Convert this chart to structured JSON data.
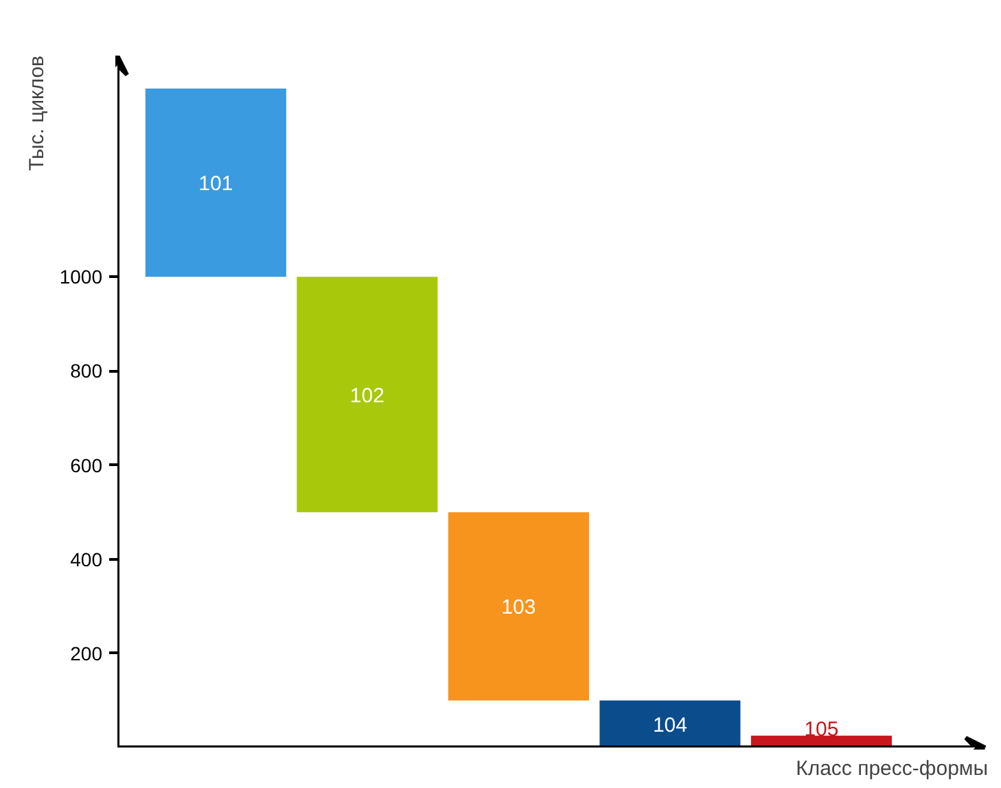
{
  "chart_data": {
    "type": "bar",
    "categories": [
      "101",
      "102",
      "103",
      "104",
      "105"
    ],
    "base": [
      1000,
      500,
      100,
      0,
      0
    ],
    "values": [
      400,
      500,
      400,
      100,
      25
    ],
    "colors": [
      "#3a9be0",
      "#a8c80c",
      "#f7941d",
      "#0b4c8c",
      "#c8161e"
    ],
    "ylim": [
      0,
      1470
    ],
    "yticks": [
      200,
      400,
      600,
      800,
      1000
    ],
    "xlabel": "Класс пресс-формы",
    "ylabel": "Тыс. циклов",
    "tick_labels": "y",
    "grid": false
  }
}
